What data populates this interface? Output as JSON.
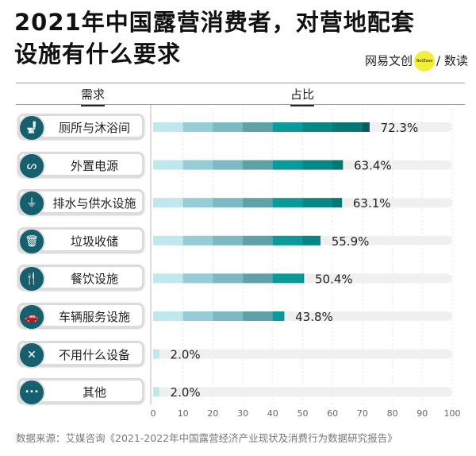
{
  "title_line1": "2021年中国露营消费者，对营地配套",
  "title_line2": "设施有什么要求",
  "brand": {
    "left": "网易文创",
    "badge": "NetEase",
    "right": "/ 数读"
  },
  "source": "数据来源：艾媒咨询《2021-2022年中国露营经济产业现状及消费行为数据研究报告》",
  "colors": {
    "segments": [
      "#bfe8ee",
      "#95ccd6",
      "#7cb9c2",
      "#5ea2a7",
      "#0a9a9a",
      "#068686",
      "#077676",
      "#0a5a56"
    ],
    "track": "#f0f0f0",
    "icon": "#155f6e"
  },
  "chart_data": {
    "type": "bar",
    "orientation": "horizontal",
    "category_header": "需求",
    "value_header": "占比",
    "categories": [
      "厕所与沐浴间",
      "外置电源",
      "排水与供水设施",
      "垃圾收储",
      "餐饮设施",
      "车辆服务设施",
      "不用什么设备",
      "其他"
    ],
    "icons": [
      "toilet-icon",
      "power-cable-icon",
      "faucet-icon",
      "trash-bin-icon",
      "utensils-icon",
      "car-icon",
      "x-circle-icon",
      "more-icon"
    ],
    "icon_glyphs": [
      "🚽",
      "ᔕ",
      "⏚",
      "🗑",
      "🍴",
      "🚗",
      "✕",
      "•••"
    ],
    "values": [
      72.3,
      63.4,
      63.1,
      55.9,
      50.4,
      43.8,
      2.0,
      2.0
    ],
    "value_labels": [
      "72.3%",
      "63.4%",
      "63.1%",
      "55.9%",
      "50.4%",
      "43.8%",
      "2.0%",
      "2.0%"
    ],
    "xlim": [
      0,
      100
    ],
    "xticks": [
      "0",
      "10",
      "20",
      "30",
      "40",
      "50",
      "60",
      "70",
      "80",
      "90",
      "100"
    ],
    "grid": true
  }
}
